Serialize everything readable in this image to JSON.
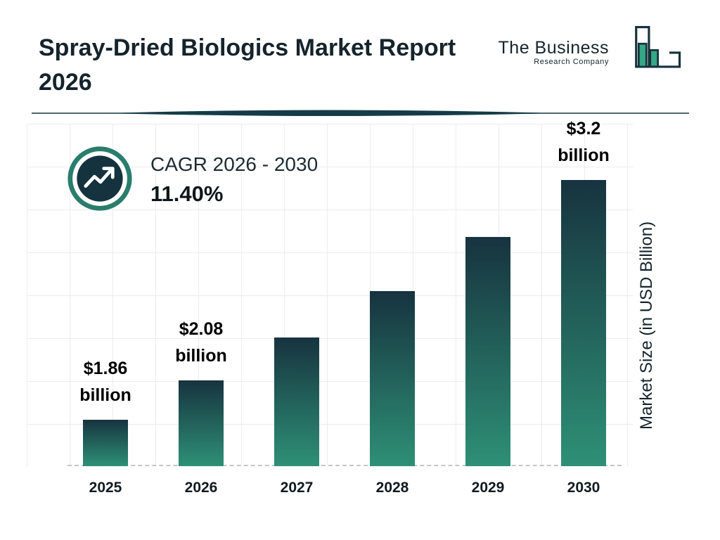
{
  "header": {
    "title_line1": "Spray-Dried Biologics Market Report",
    "title_line2": "2026",
    "logo": {
      "name_line1": "The Business",
      "name_line2": "Research Company"
    }
  },
  "cagr": {
    "label": "CAGR 2026 - 2030",
    "value": "11.40%"
  },
  "chart_data": {
    "type": "bar",
    "title": "Spray-Dried Biologics Market Report 2026",
    "categories": [
      "2025",
      "2026",
      "2027",
      "2028",
      "2029",
      "2030"
    ],
    "values": [
      1.86,
      2.08,
      2.32,
      2.58,
      2.88,
      3.2
    ],
    "data_labels": [
      {
        "amount": "$1.86",
        "unit": "billion"
      },
      {
        "amount": "$2.08",
        "unit": "billion"
      },
      null,
      null,
      null,
      {
        "amount": "$3.2",
        "unit": "billion"
      }
    ],
    "xlabel": "",
    "ylabel": "Market Size (in USD Billion)",
    "ylim": [
      1.6,
      3.25
    ],
    "grid": true,
    "legend": false,
    "colors": {
      "bar_top": "#17333f",
      "bar_bottom": "#2e9076",
      "accent_teal": "#2a7d6c",
      "accent_dark": "#14333e"
    }
  }
}
